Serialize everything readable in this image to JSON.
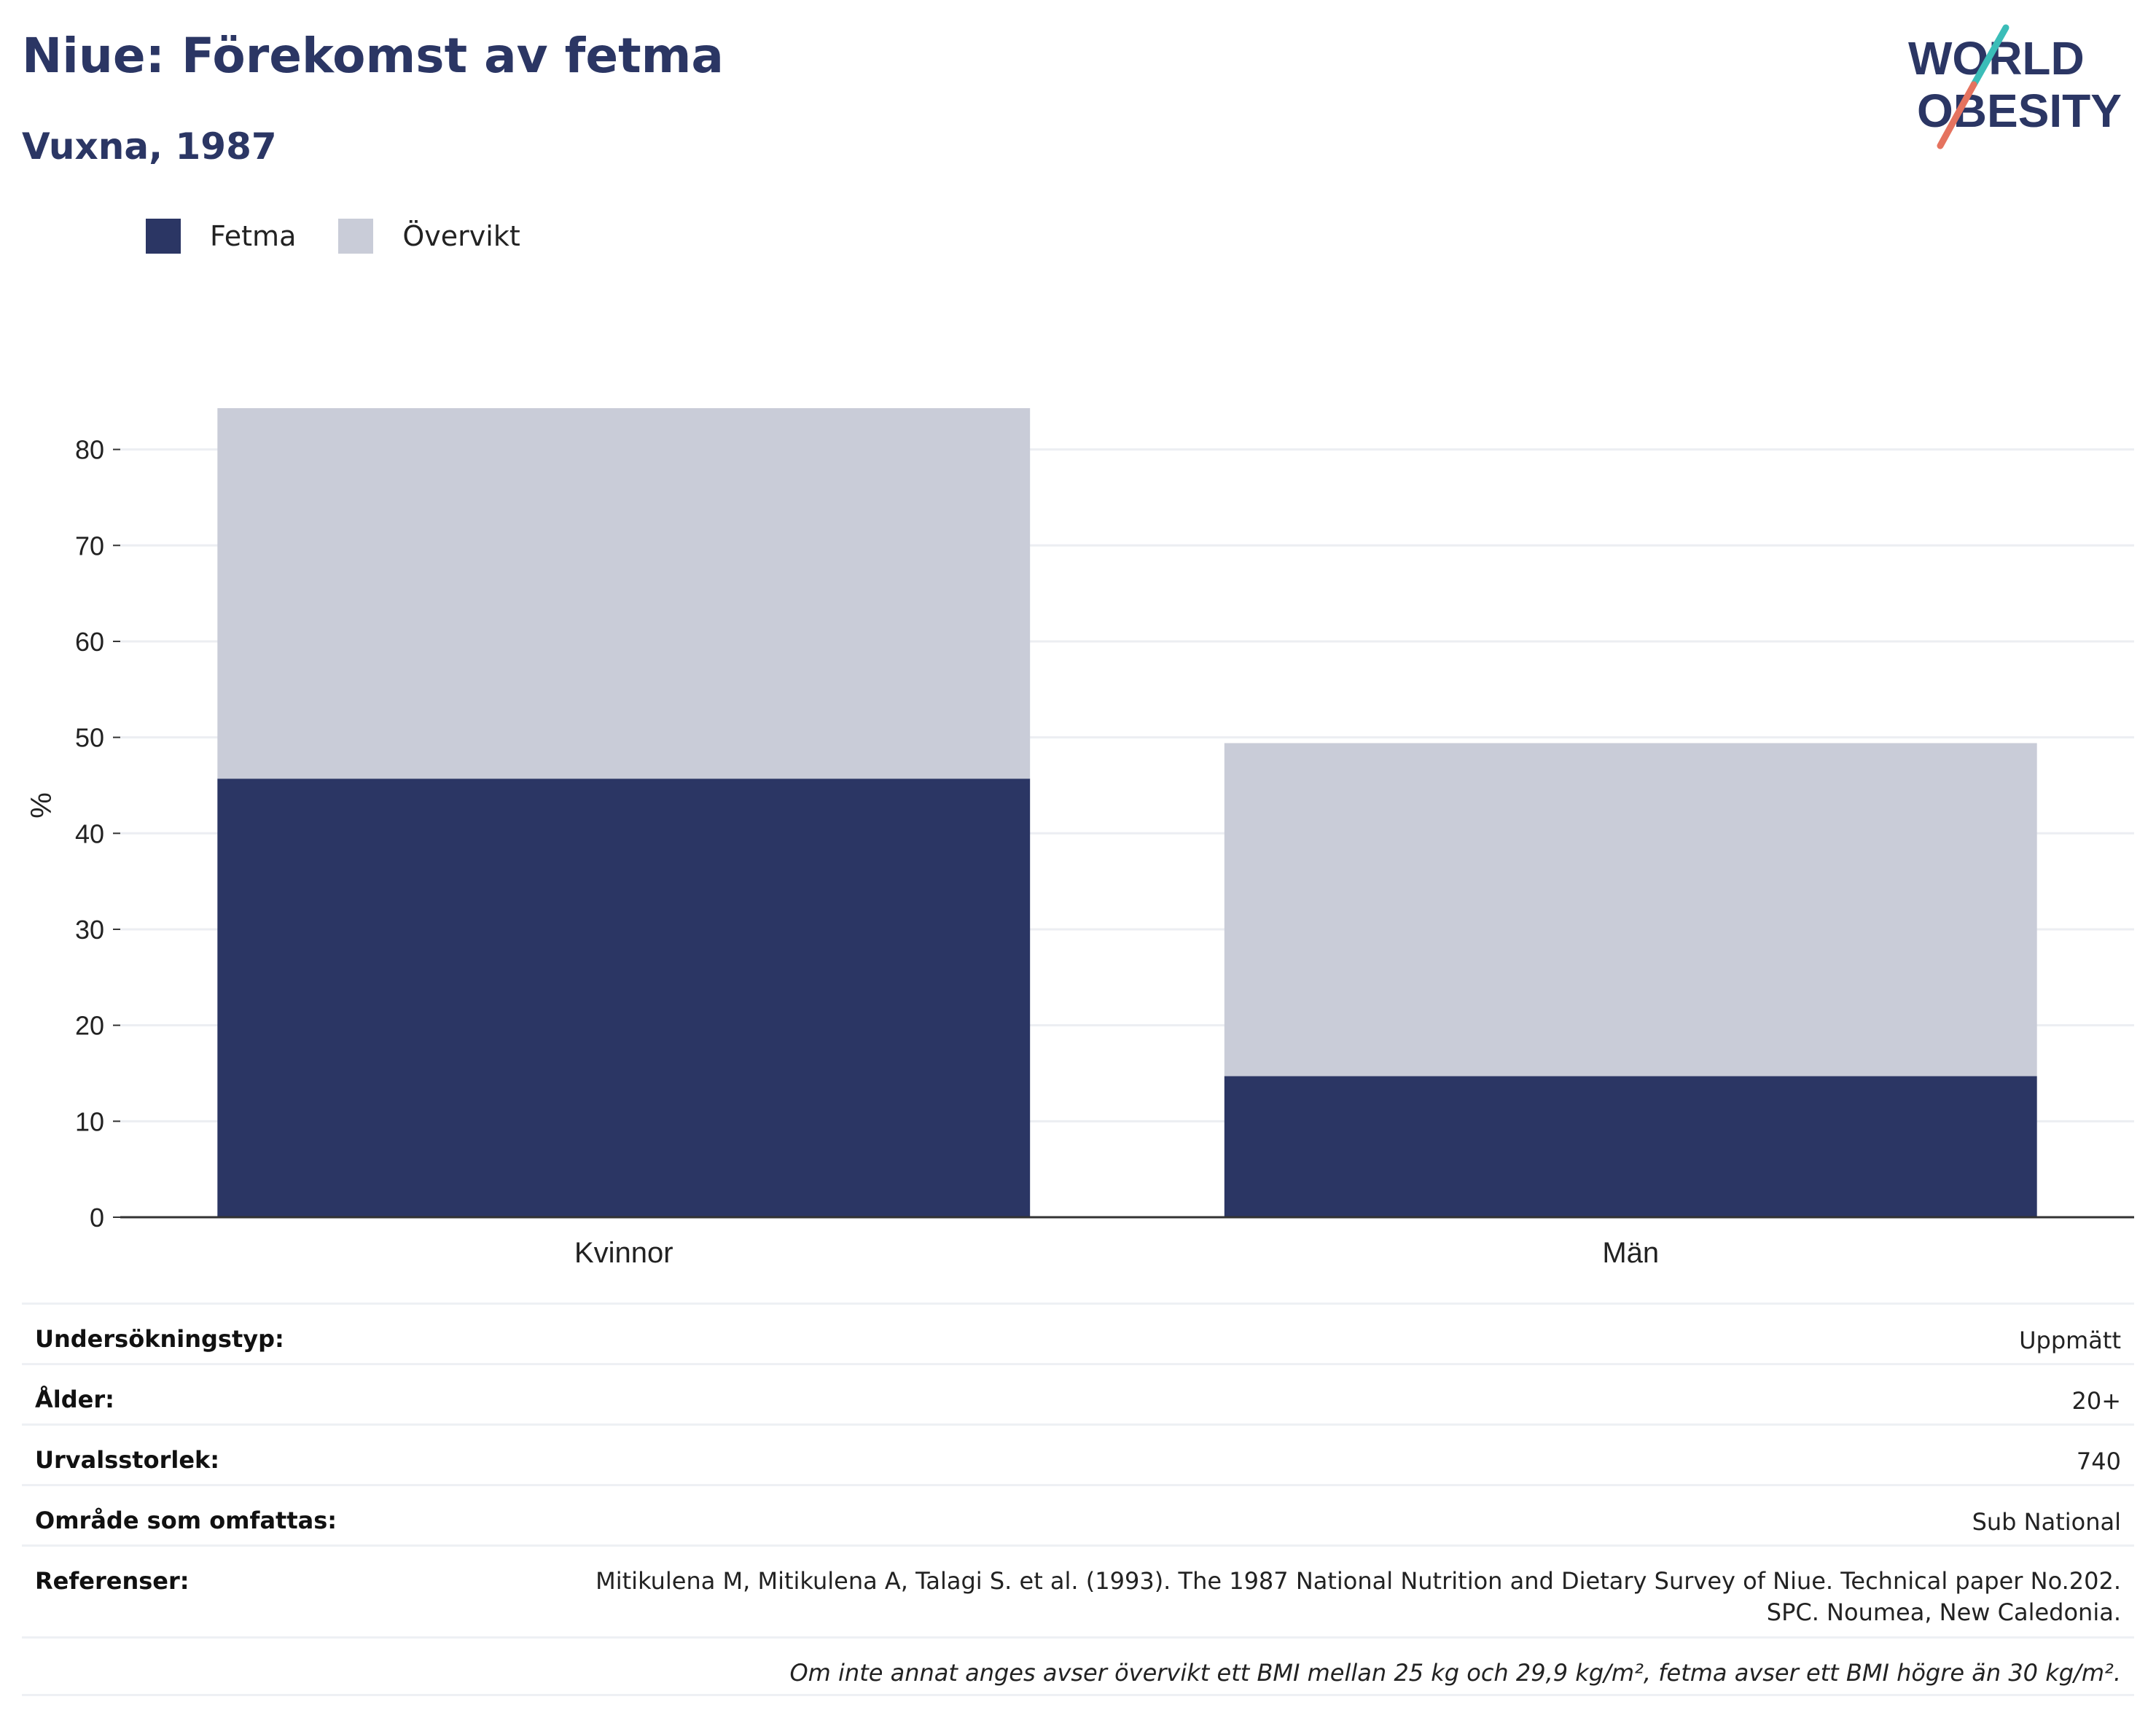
{
  "header": {
    "title": "Niue: Förekomst av fetma",
    "subtitle": "Vuxna, 1987",
    "logo_text": [
      "WORLD",
      "OBESITY"
    ]
  },
  "colors": {
    "fetma": "#2b3664",
    "overvikt": "#c9ccd8",
    "title": "#2b3664",
    "logo_teal": "#3bbdb8",
    "logo_coral": "#e5735f"
  },
  "legend": [
    {
      "label": "Fetma",
      "color": "#2b3664"
    },
    {
      "label": "Övervikt",
      "color": "#c9ccd8"
    }
  ],
  "chart_data": {
    "type": "bar",
    "stacked": true,
    "categories": [
      "Kvinnor",
      "Män"
    ],
    "series": [
      {
        "name": "Fetma",
        "values": [
          45.7,
          14.7
        ]
      },
      {
        "name": "Övervikt",
        "values": [
          38.6,
          34.7
        ]
      }
    ],
    "ylabel": "%",
    "xlabel": "",
    "ylim": [
      0,
      84.3
    ],
    "yticks": [
      0,
      10,
      20,
      30,
      40,
      50,
      60,
      70,
      80
    ],
    "grid": true,
    "legend_position": "top-left"
  },
  "details": {
    "survey_type": {
      "label": "Undersökningstyp:",
      "value": "Uppmätt"
    },
    "age": {
      "label": "Ålder:",
      "value": "20+"
    },
    "sample_size": {
      "label": "Urvalsstorlek:",
      "value": "740"
    },
    "coverage": {
      "label": "Område som omfattas:",
      "value": "Sub National"
    },
    "references": {
      "label": "Referenser:",
      "line1": "Mitikulena M, Mitikulena A, Talagi S. et al. (1993). The 1987 National Nutrition and Dietary Survey of Niue. Technical paper No.202.",
      "line2": "SPC. Noumea, New Caledonia."
    },
    "footnote": "Om inte annat anges avser övervikt ett BMI mellan 25 kg och 29,9 kg/m², fetma avser ett BMI högre än 30 kg/m²."
  }
}
